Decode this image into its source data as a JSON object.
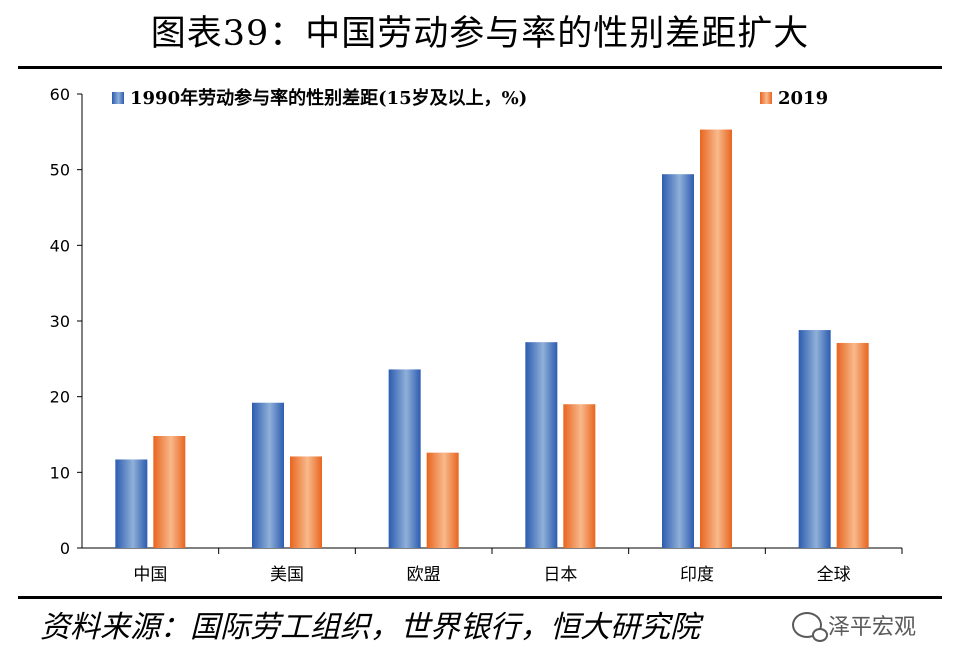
{
  "title": "图表39：中国劳动参与率的性别差距扩大",
  "source": "资料来源：国际劳工组织，世界银行，恒大研究院",
  "watermark": "泽平宏观",
  "watermark_icon": "wechat-icon",
  "chart_data": {
    "type": "bar",
    "categories": [
      "中国",
      "美国",
      "欧盟",
      "日本",
      "印度",
      "全球"
    ],
    "series": [
      {
        "name": "1990年劳动参与率的性别差距(15岁及以上，%)",
        "values": [
          11.7,
          19.2,
          23.6,
          27.2,
          49.4,
          28.8
        ],
        "color": "#3b6fc4"
      },
      {
        "name": "2019",
        "values": [
          14.8,
          12.1,
          12.6,
          19.0,
          55.3,
          27.1
        ],
        "color": "#f0782f"
      }
    ],
    "ylim": [
      0,
      60
    ],
    "yticks": [
      0,
      10,
      20,
      30,
      40,
      50,
      60
    ],
    "legend_position": "top",
    "grid": false
  }
}
